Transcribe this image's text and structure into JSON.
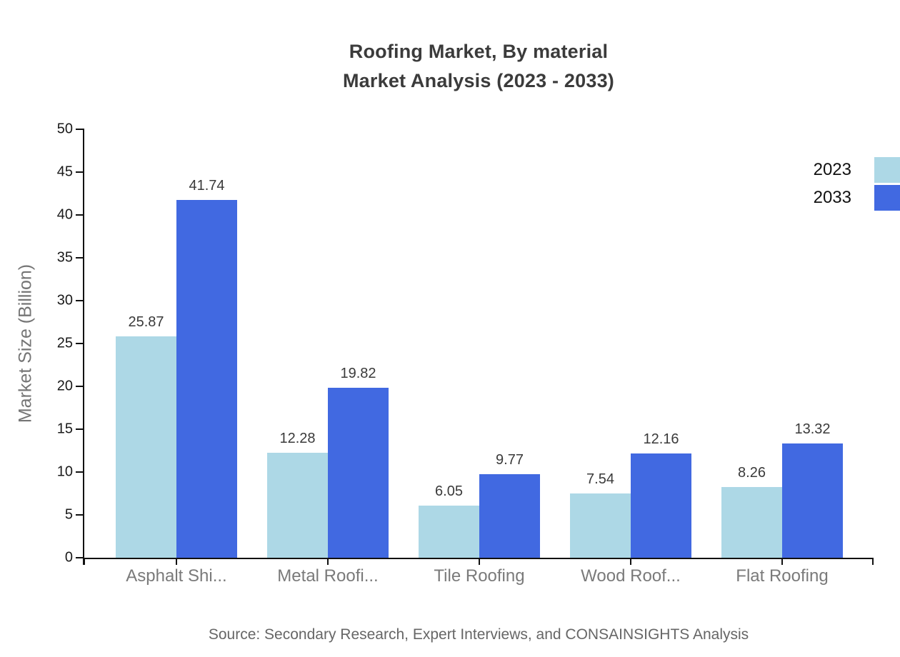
{
  "chart_data": {
    "type": "bar",
    "title": "Roofing Market, By material",
    "subtitle": "Market Analysis (2023 - 2033)",
    "categories": [
      "Asphalt Shi...",
      "Metal Roofi...",
      "Tile Roofing",
      "Wood Roof...",
      "Flat Roofing"
    ],
    "series": [
      {
        "name": "2023",
        "color": "#ADD8E6",
        "values": [
          25.87,
          12.28,
          6.05,
          7.54,
          8.26
        ]
      },
      {
        "name": "2033",
        "color": "#4169E1",
        "values": [
          41.74,
          19.82,
          9.77,
          12.16,
          13.32
        ]
      }
    ],
    "xlabel": "",
    "ylabel": "Market Size (Billion)",
    "ylim": [
      0,
      50
    ],
    "ytick_step": 5,
    "grid": false,
    "legend_position": "top-right",
    "value_labels": true
  },
  "source_note": "Source: Secondary Research, Expert Interviews, and CONSAINSIGHTS Analysis"
}
